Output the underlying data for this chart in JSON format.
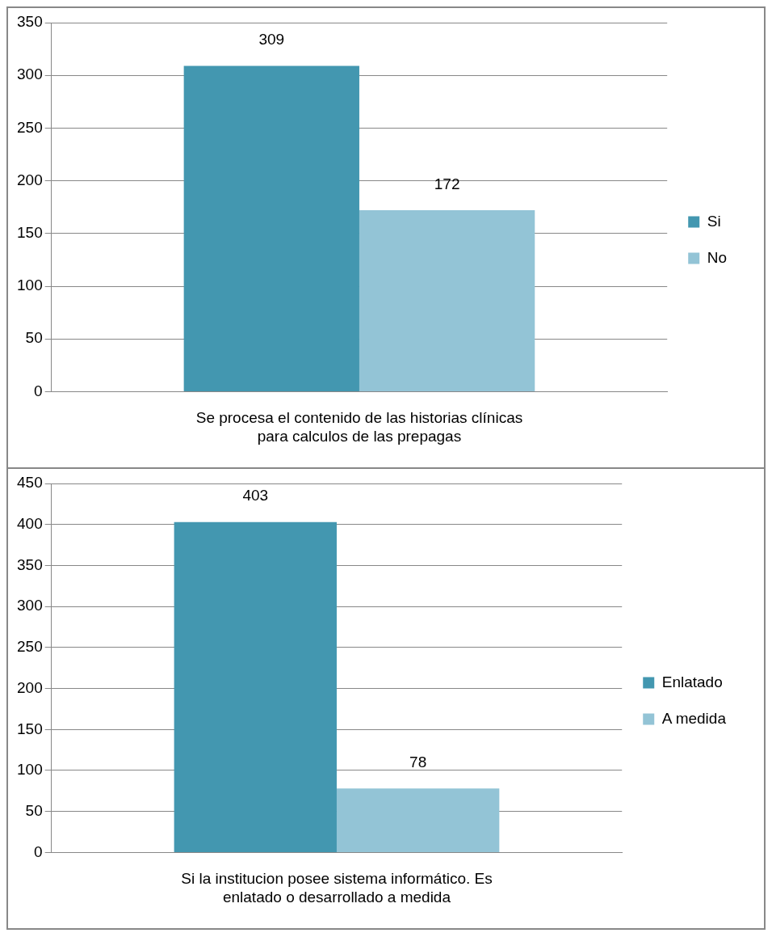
{
  "chart_data": [
    {
      "type": "bar",
      "categories": [
        "Se procesa el contenido de las historias clínicas para calculos de las prepagas"
      ],
      "series": [
        {
          "name": "Si",
          "color": "#4397b0",
          "values": [
            309
          ]
        },
        {
          "name": "No",
          "color": "#93c4d6",
          "values": [
            172
          ]
        }
      ],
      "ylim": [
        0,
        350
      ],
      "yticks": [
        0,
        50,
        100,
        150,
        200,
        250,
        300,
        350
      ],
      "grid": "y",
      "legend": "right",
      "data_labels": true
    },
    {
      "type": "bar",
      "categories": [
        "Si la institucion posee sistema informático. Es enlatado o desarrollado a medida"
      ],
      "series": [
        {
          "name": "Enlatado",
          "color": "#4397b0",
          "values": [
            403
          ]
        },
        {
          "name": "A medida",
          "color": "#93c4d6",
          "values": [
            78
          ]
        }
      ],
      "ylim": [
        0,
        450
      ],
      "yticks": [
        0,
        50,
        100,
        150,
        200,
        250,
        300,
        350,
        400,
        450
      ],
      "grid": "y",
      "legend": "right",
      "data_labels": true
    }
  ]
}
